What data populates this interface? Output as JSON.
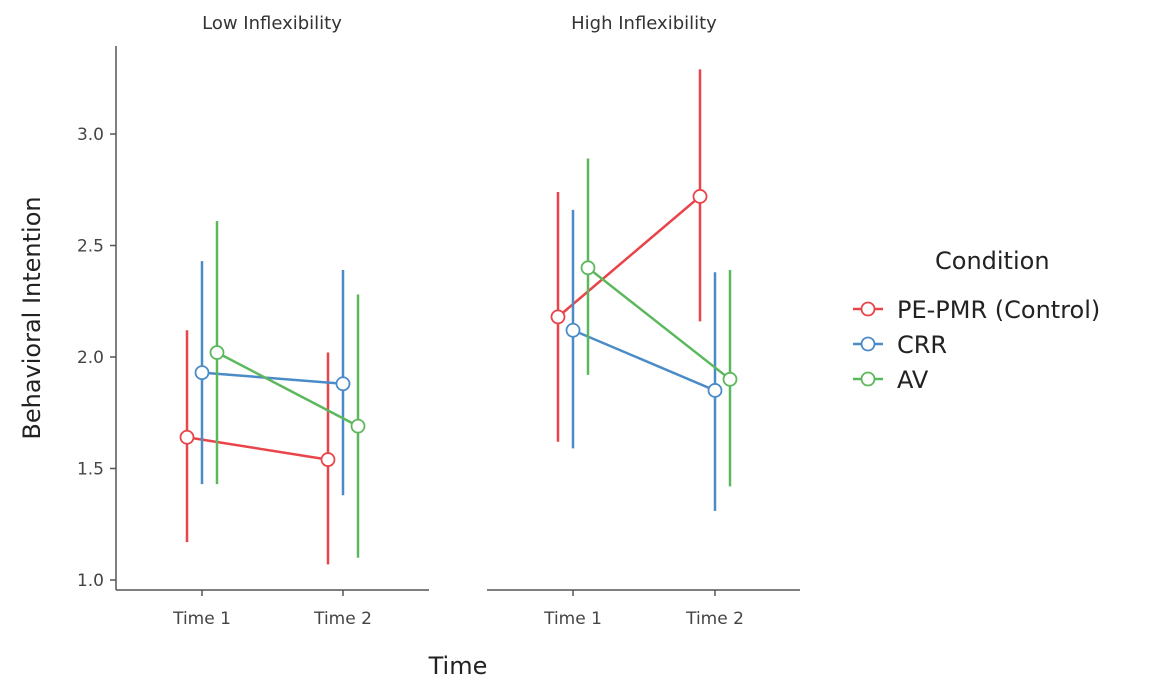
{
  "chart_data": {
    "type": "line",
    "ylabel": "Behavioral Intention",
    "xlabel": "Time",
    "ylim": [
      1.0,
      3.0
    ],
    "yticks": [
      "1.0",
      "1.5",
      "2.0",
      "2.5",
      "3.0"
    ],
    "categories": [
      "Time 1",
      "Time 2"
    ],
    "grid": false,
    "legend_title": "Condition",
    "legend_position": "right",
    "series_meta": [
      {
        "name": "PE-PMR (Control)",
        "color": "#e8444a"
      },
      {
        "name": "CRR",
        "color": "#4a8bc8"
      },
      {
        "name": "AV",
        "color": "#5cb85c"
      }
    ],
    "panels": [
      {
        "title": "Low Inflexibility",
        "series": [
          {
            "name": "PE-PMR (Control)",
            "values": [
              1.64,
              1.54
            ],
            "lower": [
              1.17,
              1.07
            ],
            "upper": [
              2.12,
              2.02
            ]
          },
          {
            "name": "CRR",
            "values": [
              1.93,
              1.88
            ],
            "lower": [
              1.43,
              1.38
            ],
            "upper": [
              2.43,
              2.39
            ]
          },
          {
            "name": "AV",
            "values": [
              2.02,
              1.69
            ],
            "lower": [
              1.43,
              1.1
            ],
            "upper": [
              2.61,
              2.28
            ]
          }
        ]
      },
      {
        "title": "High Inflexibility",
        "series": [
          {
            "name": "PE-PMR (Control)",
            "values": [
              2.18,
              2.72
            ],
            "lower": [
              1.62,
              2.16
            ],
            "upper": [
              2.74,
              3.29
            ]
          },
          {
            "name": "CRR",
            "values": [
              2.12,
              1.85
            ],
            "lower": [
              1.59,
              1.31
            ],
            "upper": [
              2.66,
              2.38
            ]
          },
          {
            "name": "AV",
            "values": [
              2.4,
              1.9
            ],
            "lower": [
              1.92,
              1.42
            ],
            "upper": [
              2.89,
              2.39
            ]
          }
        ]
      }
    ]
  }
}
